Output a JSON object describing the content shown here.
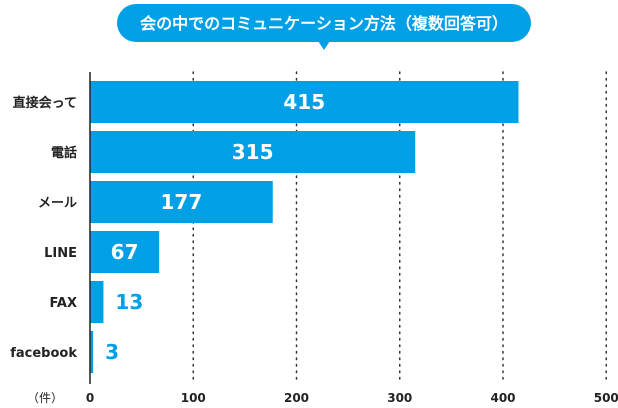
{
  "chart_data": {
    "type": "bar",
    "orientation": "horizontal",
    "title": "会の中でのコミュニケーション方法（複数回答可）",
    "unit_label": "（件）",
    "categories": [
      "直接会って",
      "電話",
      "メール",
      "LINE",
      "FAX",
      "facebook"
    ],
    "values": [
      415,
      315,
      177,
      67,
      13,
      3
    ],
    "xlim": [
      0,
      500
    ],
    "xticks": [
      "0",
      "100",
      "200",
      "300",
      "400",
      "500"
    ],
    "grid": "vertical-dotted",
    "colors": {
      "bar": "#00a0e6",
      "title_bg": "#00a0e6",
      "title_text": "#ffffff",
      "label_outside": "#00a0e6",
      "label_inside": "#ffffff",
      "axis": "#222222"
    }
  }
}
